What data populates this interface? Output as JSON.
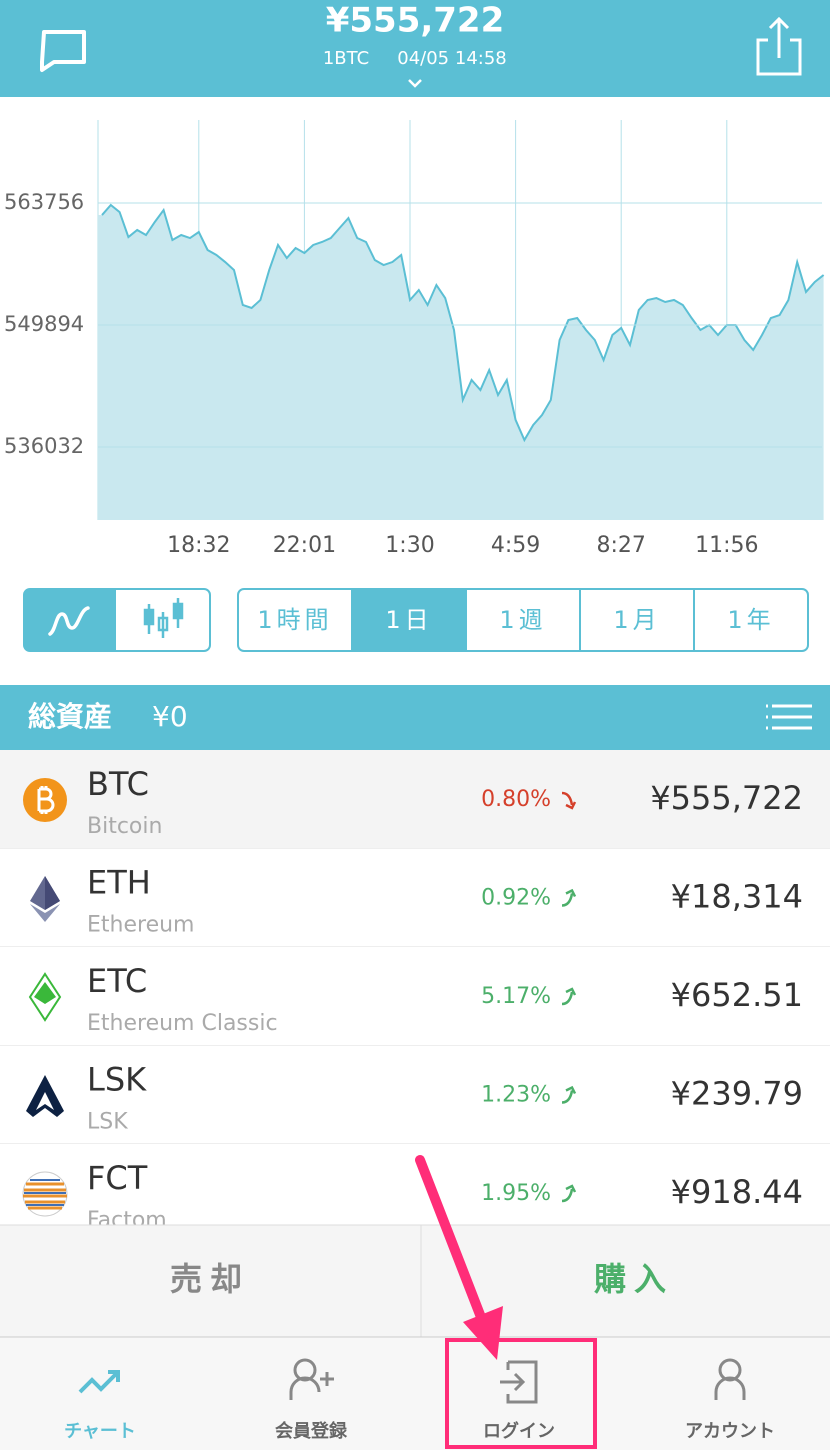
{
  "header": {
    "price": "¥555,722",
    "unit": "1BTC",
    "timestamp": "04/05 14:58"
  },
  "chart_data": {
    "type": "area",
    "categories": [
      null,
      null,
      null,
      null,
      null,
      null,
      null,
      null,
      null,
      null,
      null,
      "18:32",
      null,
      null,
      null,
      null,
      null,
      null,
      null,
      null,
      null,
      null,
      null,
      "22:01",
      null,
      null,
      null,
      null,
      null,
      null,
      null,
      null,
      null,
      null,
      null,
      "1:30",
      null,
      null,
      null,
      null,
      null,
      null,
      null,
      null,
      null,
      null,
      null,
      "4:59",
      null,
      null,
      null,
      null,
      null,
      null,
      null,
      null,
      null,
      null,
      null,
      "8:27",
      null,
      null,
      null,
      null,
      null,
      null,
      null,
      null,
      null,
      null,
      null,
      "11:56",
      null,
      null,
      null,
      null,
      null,
      null,
      null,
      null,
      null,
      null,
      null
    ],
    "series": [
      {
        "color": "#5bbfd4",
        "values": [
          562390,
          563530,
          562730,
          559890,
          560690,
          560120,
          561600,
          562960,
          559550,
          560120,
          559780,
          560460,
          558420,
          557850,
          557050,
          556140,
          552170,
          551830,
          552740,
          556140,
          558990,
          557510,
          558640,
          558080,
          558990,
          559330,
          559780,
          560920,
          562050,
          559780,
          559330,
          557280,
          556710,
          557050,
          557850,
          552740,
          553870,
          552170,
          554440,
          552960,
          549330,
          541380,
          543650,
          542510,
          544780,
          541940,
          543650,
          539110,
          536830,
          538540,
          539670,
          541380,
          548190,
          550460,
          550690,
          549330,
          548190,
          545920,
          548760,
          549560,
          547630,
          551600,
          552740,
          552960,
          552510,
          552740,
          552170,
          550690,
          549330,
          549900,
          548760,
          549900,
          549900,
          548190,
          547060,
          548760,
          550690,
          551030,
          552740,
          557050,
          553650,
          554780,
          555580
        ]
      }
    ],
    "fill": "#c9e8ef",
    "ylim": [
      527740,
      573190
    ],
    "yticks": [
      536032,
      549894,
      563756
    ],
    "grid": true
  },
  "ranges": [
    {
      "label": "1時間"
    },
    {
      "label": "1日",
      "active": true
    },
    {
      "label": "1週"
    },
    {
      "label": "1月"
    },
    {
      "label": "1年"
    }
  ],
  "assets_bar": {
    "title": "総資産",
    "total": "¥0"
  },
  "assets": [
    {
      "symbol": "BTC",
      "name": "Bitcoin",
      "change": "0.80%",
      "trend": "down",
      "change_color": "#d5402b",
      "price": "¥555,722"
    },
    {
      "symbol": "ETH",
      "name": "Ethereum",
      "change": "0.92%",
      "trend": "up",
      "change_color": "#4caf6a",
      "price": "¥18,314"
    },
    {
      "symbol": "ETC",
      "name": "Ethereum Classic",
      "change": "5.17%",
      "trend": "up",
      "change_color": "#4caf6a",
      "price": "¥652.51"
    },
    {
      "symbol": "LSK",
      "name": "LSK",
      "change": "1.23%",
      "trend": "up",
      "change_color": "#4caf6a",
      "price": "¥239.79"
    },
    {
      "symbol": "FCT",
      "name": "Factom",
      "change": "1.95%",
      "trend": "up",
      "change_color": "#4caf6a",
      "price": "¥918.44"
    }
  ],
  "actions": {
    "sell": "売却",
    "buy": "購入"
  },
  "tabs": [
    {
      "label": "チャート",
      "active": true
    },
    {
      "label": "会員登録"
    },
    {
      "label": "ログイン"
    },
    {
      "label": "アカウント"
    }
  ]
}
